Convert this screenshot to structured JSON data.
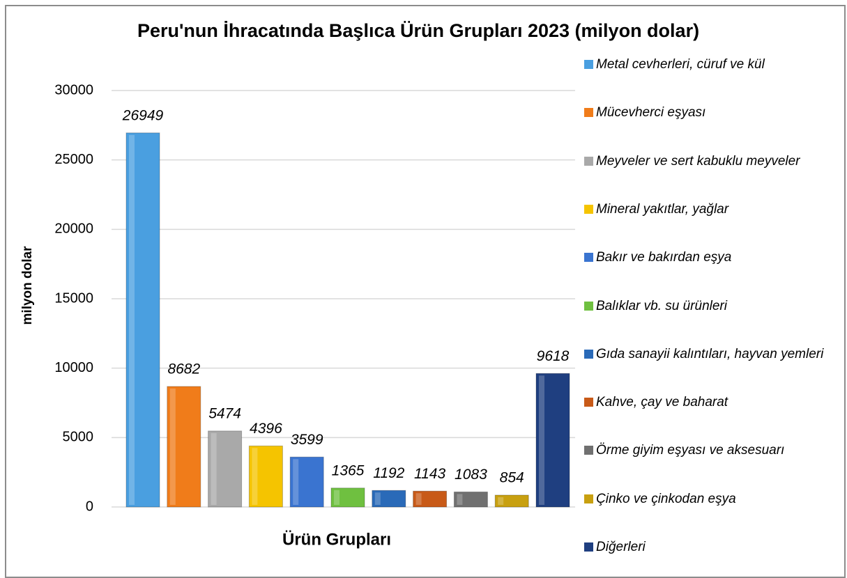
{
  "chart_data": {
    "type": "bar",
    "title": "Peru'nun İhracatında Başlıca Ürün Grupları 2023 (milyon dolar)",
    "x_label": "Ürün Grupları",
    "y_label": "milyon dolar",
    "categories": [
      null
    ],
    "series": [
      {
        "name": "Metal cevherleri, cüruf ve kül",
        "color": "#4a9fe0",
        "values": [
          26949
        ]
      },
      {
        "name": "Mücevherci eşyası",
        "color": "#f07c1a",
        "values": [
          8682
        ]
      },
      {
        "name": "Meyveler ve sert kabuklu meyveler",
        "color": "#a9a9a9",
        "values": [
          5474
        ]
      },
      {
        "name": "Mineral yakıtlar, yağlar",
        "color": "#f5c400",
        "values": [
          4396
        ]
      },
      {
        "name": "Bakır ve bakırdan eşya",
        "color": "#3a74d0",
        "values": [
          3599
        ]
      },
      {
        "name": "Balıklar vb. su ürünleri",
        "color": "#6fc040",
        "values": [
          1365
        ]
      },
      {
        "name": "Gıda sanayii kalıntıları, hayvan yemleri",
        "color": "#2a6ab8",
        "values": [
          1192
        ]
      },
      {
        "name": "Kahve, çay ve baharat",
        "color": "#c85a18",
        "values": [
          1143
        ]
      },
      {
        "name": "Örme giyim eşyası ve aksesuarı",
        "color": "#707070",
        "values": [
          1083
        ]
      },
      {
        "name": "Çinko ve çinkodan eşya",
        "color": "#c8a010",
        "values": [
          854
        ]
      },
      {
        "name": "Diğerleri",
        "color": "#1f3f80",
        "values": [
          9618
        ]
      }
    ],
    "ylim": [
      0,
      30000
    ],
    "yticks": [
      0,
      5000,
      10000,
      15000,
      20000,
      25000,
      30000
    ],
    "grid": true,
    "legend": "right"
  }
}
